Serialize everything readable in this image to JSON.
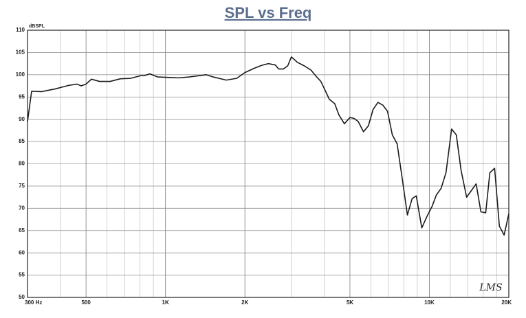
{
  "chart_data": {
    "type": "line",
    "title": "SPL vs Freq",
    "y_label": "dBSPL",
    "watermark": "LMS",
    "log_x": true,
    "grid": true,
    "xlim": [
      300,
      20000
    ],
    "ylim": [
      50,
      110
    ],
    "xticks": [
      {
        "value": 300,
        "label": "300 Hz"
      },
      500,
      {
        "value": 1000,
        "label": "1K"
      },
      {
        "value": 2000,
        "label": "2K"
      },
      {
        "value": 5000,
        "label": "5K"
      },
      {
        "value": 10000,
        "label": "10K"
      },
      {
        "value": 20000,
        "label": "20K"
      }
    ],
    "xgrid": [
      400,
      600,
      700,
      800,
      900,
      3000,
      4000,
      6000,
      7000,
      8000,
      9000,
      12000,
      14000,
      16000,
      18000
    ],
    "yticks": [
      50,
      55,
      60,
      65,
      70,
      75,
      80,
      85,
      90,
      95,
      100,
      105,
      110
    ],
    "series": [
      {
        "name": "SPL",
        "color": "#1a1a1a",
        "x": [
          300,
          311,
          339,
          381,
          429,
          462,
          479,
          500,
          524,
          563,
          617,
          675,
          738,
          807,
          832,
          872,
          935,
          1123,
          1230,
          1428,
          1517,
          1700,
          1863,
          2000,
          2178,
          2312,
          2454,
          2606,
          2685,
          2800,
          2905,
          3000,
          3160,
          3357,
          3566,
          3742,
          3881,
          4026,
          4176,
          4379,
          4539,
          4765,
          5000,
          5180,
          5373,
          5628,
          5870,
          6120,
          6382,
          6656,
          6940,
          7238,
          7548,
          7922,
          8255,
          8605,
          8920,
          9360,
          9760,
          10250,
          10630,
          11080,
          11560,
          12140,
          12650,
          13190,
          13840,
          14430,
          15040,
          15680,
          16350,
          16950,
          17670,
          18420,
          19200,
          20000
        ],
        "values": [
          89.5,
          96.3,
          96.2,
          96.8,
          97.6,
          97.9,
          97.5,
          97.9,
          99,
          98.5,
          98.5,
          99.1,
          99.2,
          99.8,
          99.8,
          100.2,
          99.5,
          99.3,
          99.5,
          100,
          99.5,
          98.8,
          99.2,
          100.5,
          101.5,
          102.1,
          102.5,
          102.2,
          101.3,
          101.3,
          102,
          104,
          102.8,
          102,
          101,
          99.5,
          98.5,
          96.5,
          94.5,
          93.5,
          91,
          89,
          90.4,
          90.2,
          89.5,
          87.2,
          88.5,
          92.2,
          93.8,
          93.2,
          91.8,
          86.5,
          84.5,
          76,
          68.5,
          72.2,
          72.8,
          65.6,
          68,
          70.5,
          73,
          74.5,
          78,
          87.8,
          86.5,
          78.5,
          72.5,
          74,
          75.5,
          69.2,
          69,
          78,
          79,
          66,
          64,
          68.8
        ]
      }
    ]
  }
}
